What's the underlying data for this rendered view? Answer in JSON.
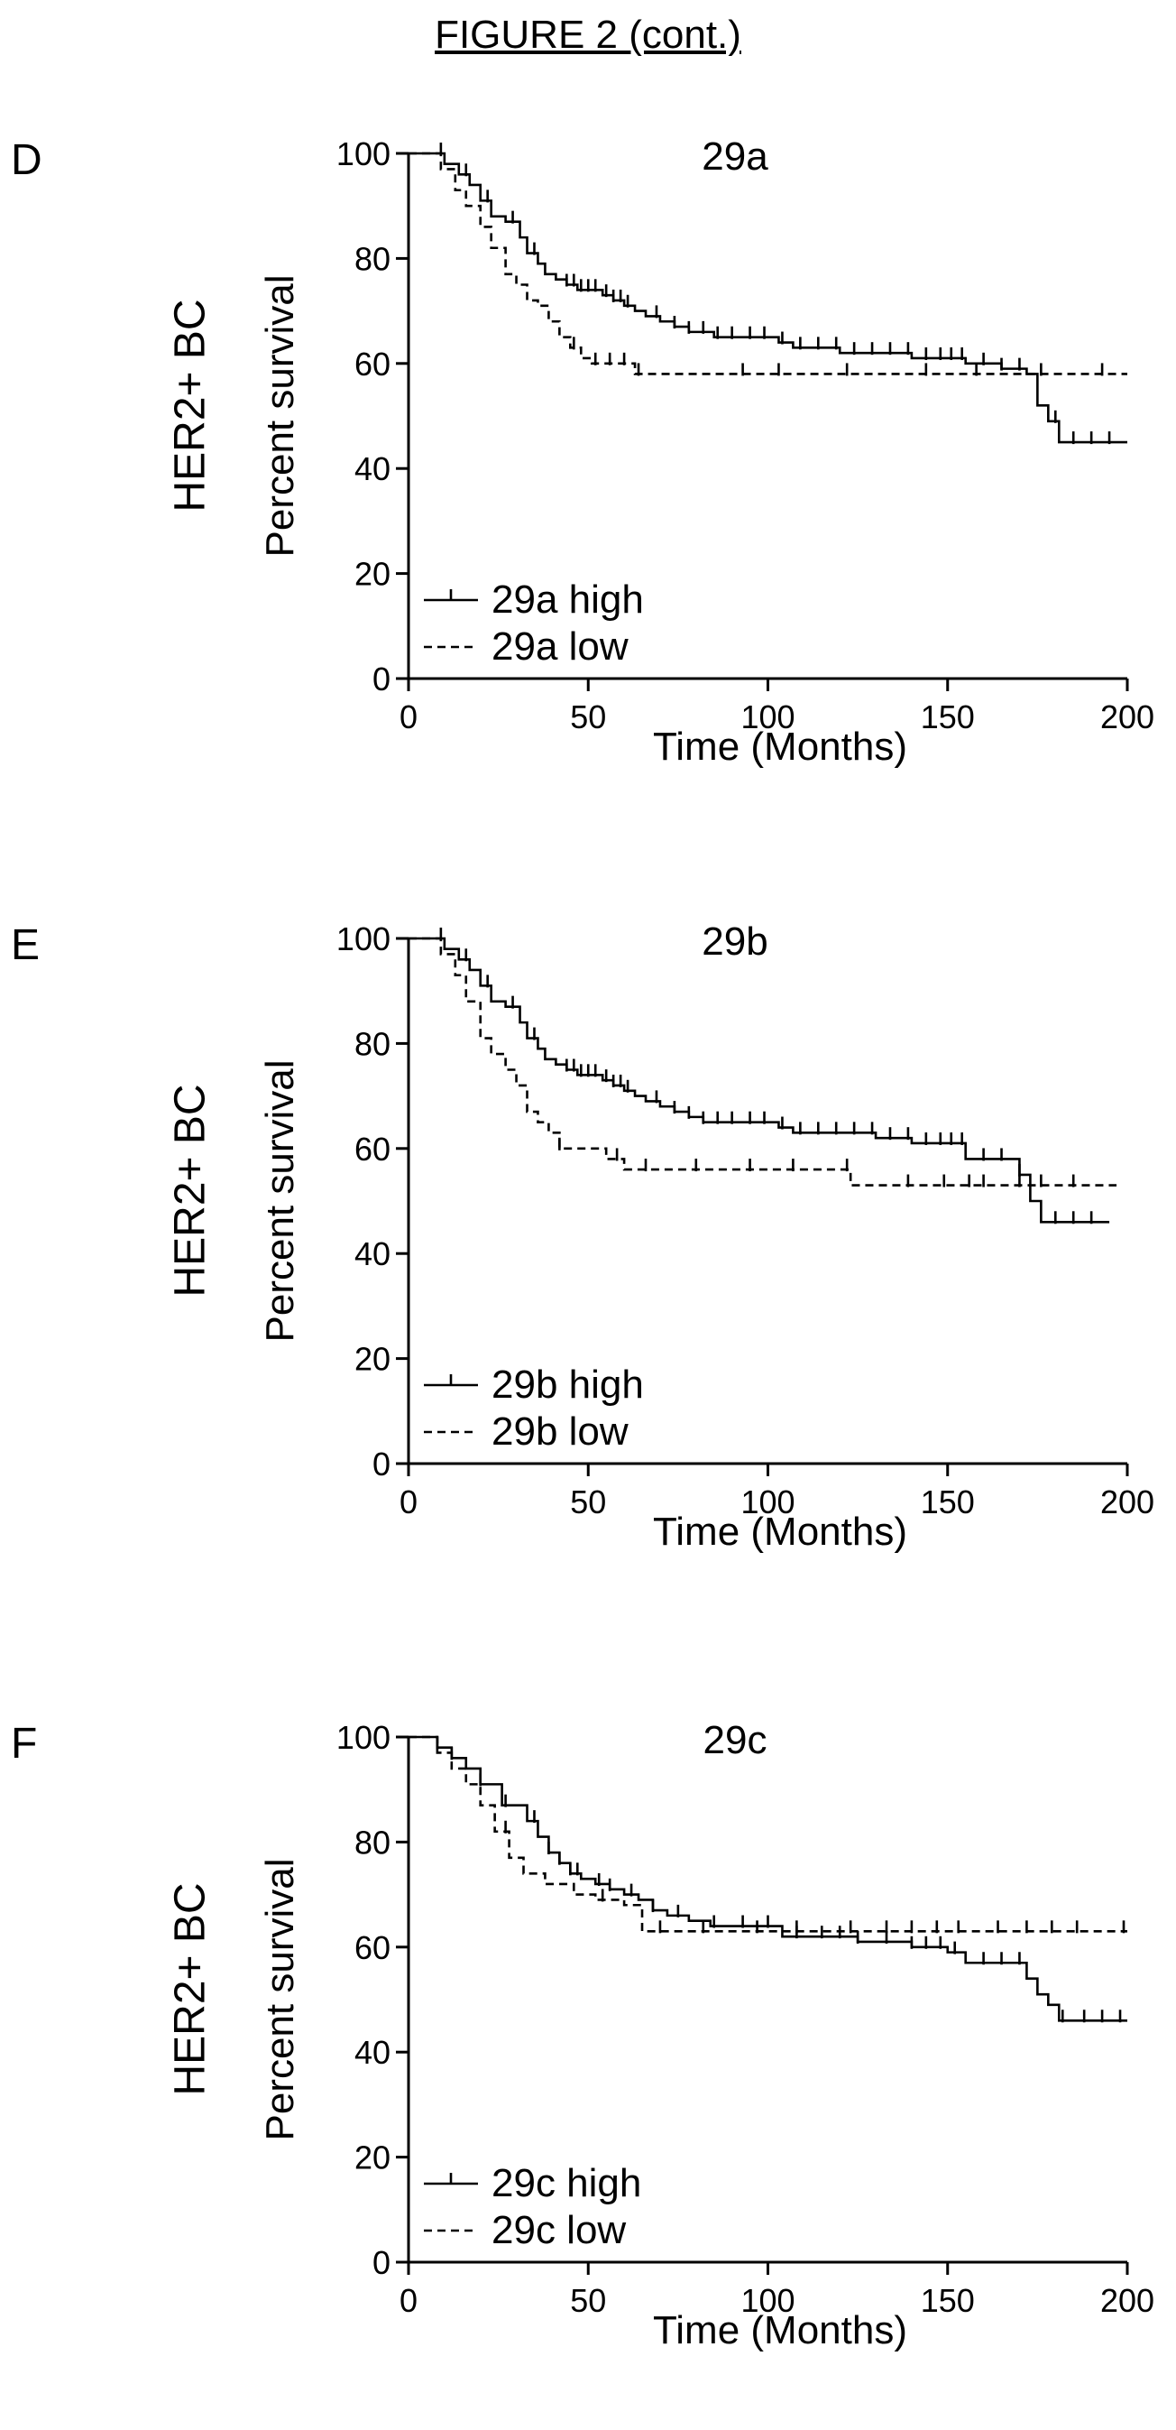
{
  "figure_title": "FIGURE 2 (cont.)",
  "chart_data": [
    {
      "type": "line",
      "panel_letter": "D",
      "row_label": "HER2+ BC",
      "title": "29a",
      "xlabel": "Time (Months)",
      "ylabel": "Percent survival",
      "xlim": [
        0,
        200
      ],
      "ylim": [
        0,
        100
      ],
      "xticks": [
        "0",
        "50",
        "100",
        "150",
        "200"
      ],
      "yticks": [
        "0",
        "20",
        "40",
        "60",
        "80",
        "100"
      ],
      "legend_position": "bottom-left",
      "series": [
        {
          "name": "29a high",
          "style": "solid",
          "x": [
            0,
            10,
            14,
            17,
            20,
            23,
            27,
            31,
            33,
            36,
            38,
            41,
            44,
            47,
            50,
            54,
            57,
            60,
            63,
            66,
            70,
            74,
            78,
            82,
            85,
            95,
            100,
            103,
            107,
            120,
            130,
            140,
            155,
            165,
            172,
            175,
            178,
            181,
            200
          ],
          "y": [
            100,
            98,
            96,
            94,
            91,
            88,
            87,
            84,
            81,
            79,
            77,
            76,
            75,
            74,
            74,
            73,
            72,
            71,
            70,
            69,
            68,
            67,
            66,
            66,
            65,
            65,
            65,
            64,
            63,
            62,
            62,
            61,
            60,
            59,
            58,
            52,
            49,
            45,
            45
          ],
          "censor_x": [
            9,
            16,
            22,
            29,
            35,
            44,
            46,
            48,
            50,
            52,
            55,
            57,
            59,
            61,
            69,
            74,
            78,
            82,
            86,
            90,
            95,
            99,
            104,
            109,
            114,
            119,
            124,
            129,
            134,
            139,
            144,
            148,
            151,
            154,
            160,
            165,
            170,
            180,
            185,
            190,
            195
          ]
        },
        {
          "name": "29a low",
          "style": "dashed",
          "x": [
            0,
            9,
            13,
            16,
            20,
            23,
            27,
            30,
            33,
            36,
            39,
            42,
            45,
            48,
            51,
            55,
            63,
            200
          ],
          "y": [
            100,
            97,
            93,
            90,
            86,
            82,
            77,
            75,
            72,
            71,
            68,
            65,
            63,
            61,
            60,
            60,
            58,
            58
          ],
          "censor_x": [
            46,
            52,
            56,
            60,
            64,
            93,
            103,
            122,
            144,
            158,
            176,
            193
          ]
        }
      ]
    },
    {
      "type": "line",
      "panel_letter": "E",
      "row_label": "HER2+ BC",
      "title": "29b",
      "xlabel": "Time (Months)",
      "ylabel": "Percent survival",
      "xlim": [
        0,
        200
      ],
      "ylim": [
        0,
        100
      ],
      "xticks": [
        "0",
        "50",
        "100",
        "150",
        "200"
      ],
      "yticks": [
        "0",
        "20",
        "40",
        "60",
        "80",
        "100"
      ],
      "legend_position": "bottom-left",
      "series": [
        {
          "name": "29b high",
          "style": "solid",
          "x": [
            0,
            10,
            14,
            17,
            20,
            23,
            27,
            31,
            33,
            36,
            38,
            41,
            44,
            47,
            50,
            54,
            57,
            60,
            63,
            66,
            70,
            74,
            78,
            82,
            90,
            103,
            107,
            120,
            130,
            140,
            155,
            165,
            170,
            173,
            176,
            195
          ],
          "y": [
            100,
            98,
            96,
            94,
            91,
            88,
            87,
            84,
            81,
            79,
            77,
            76,
            75,
            74,
            74,
            73,
            72,
            71,
            70,
            69,
            68,
            67,
            66,
            65,
            65,
            64,
            63,
            63,
            62,
            61,
            58,
            58,
            55,
            50,
            46,
            46
          ],
          "censor_x": [
            9,
            16,
            22,
            29,
            35,
            44,
            46,
            48,
            50,
            52,
            55,
            57,
            59,
            61,
            69,
            74,
            78,
            82,
            86,
            90,
            95,
            99,
            104,
            109,
            114,
            119,
            124,
            129,
            134,
            139,
            144,
            148,
            151,
            154,
            160,
            165,
            170,
            180,
            185,
            190
          ]
        },
        {
          "name": "29b low",
          "style": "dashed",
          "x": [
            0,
            9,
            13,
            16,
            20,
            23,
            27,
            30,
            33,
            36,
            39,
            42,
            47,
            55,
            60,
            120,
            123,
            172,
            197
          ],
          "y": [
            100,
            97,
            93,
            88,
            81,
            78,
            75,
            72,
            67,
            65,
            63,
            60,
            60,
            58,
            56,
            56,
            53,
            53,
            53
          ],
          "censor_x": [
            42,
            58,
            66,
            80,
            95,
            107,
            122,
            139,
            149,
            156,
            160,
            170,
            176,
            185
          ]
        }
      ]
    },
    {
      "type": "line",
      "panel_letter": "F",
      "row_label": "HER2+ BC",
      "title": "29c",
      "xlabel": "Time (Months)",
      "ylabel": "Percent survival",
      "xlim": [
        0,
        200
      ],
      "ylim": [
        0,
        100
      ],
      "xticks": [
        "0",
        "50",
        "100",
        "150",
        "200"
      ],
      "yticks": [
        "0",
        "20",
        "40",
        "60",
        "80",
        "100"
      ],
      "legend_position": "bottom-left",
      "series": [
        {
          "name": "29c high",
          "style": "solid",
          "x": [
            0,
            8,
            12,
            16,
            20,
            26,
            30,
            33,
            36,
            39,
            42,
            45,
            48,
            52,
            56,
            60,
            64,
            68,
            72,
            78,
            84,
            100,
            104,
            110,
            125,
            140,
            150,
            155,
            165,
            172,
            175,
            178,
            181,
            200
          ],
          "y": [
            100,
            98,
            96,
            94,
            91,
            87,
            87,
            84,
            81,
            78,
            76,
            74,
            73,
            72,
            71,
            70,
            69,
            67,
            66,
            65,
            64,
            64,
            62,
            62,
            61,
            60,
            59,
            57,
            57,
            54,
            51,
            49,
            46,
            46
          ],
          "censor_x": [
            8,
            12,
            20,
            27,
            35,
            39,
            42,
            45,
            47,
            53,
            56,
            62,
            68,
            75,
            85,
            93,
            100,
            108,
            115,
            120,
            125,
            133,
            140,
            144,
            148,
            152,
            160,
            165,
            170,
            182,
            188,
            193,
            198
          ]
        },
        {
          "name": "29c low",
          "style": "dashed",
          "x": [
            0,
            8,
            12,
            16,
            20,
            24,
            28,
            32,
            38,
            46,
            52,
            60,
            65,
            200
          ],
          "y": [
            100,
            97,
            94,
            91,
            87,
            82,
            77,
            74,
            72,
            70,
            69,
            68,
            63,
            63
          ],
          "censor_x": [
            27,
            54,
            70,
            82,
            97,
            108,
            123,
            133,
            140,
            147,
            153,
            164,
            172,
            179,
            186,
            199
          ]
        }
      ]
    }
  ]
}
